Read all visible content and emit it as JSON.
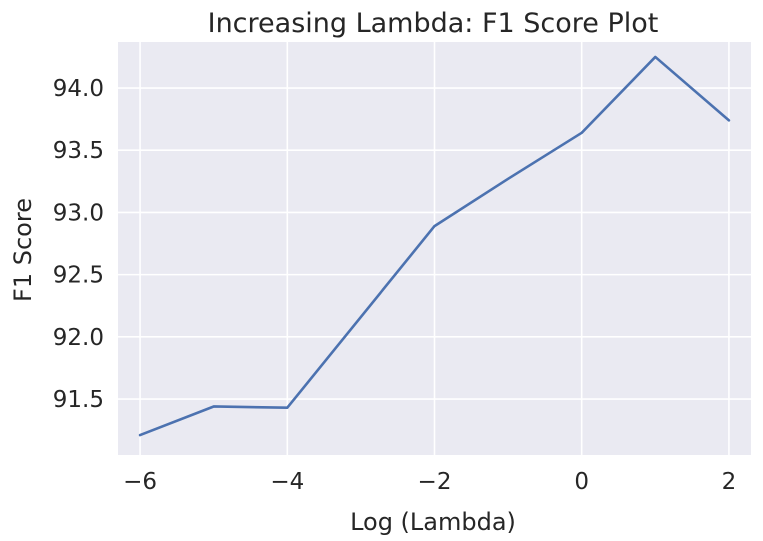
{
  "chart_data": {
    "type": "line",
    "title": "Increasing Lambda: F1 Score Plot",
    "xlabel": "Log (Lambda)",
    "ylabel": "F1 Score",
    "x": [
      -6,
      -5,
      -4,
      -2,
      -1,
      0,
      1,
      2
    ],
    "series": [
      {
        "values": [
          91.21,
          91.44,
          91.43,
          92.89,
          93.27,
          93.64,
          94.25,
          93.74
        ]
      }
    ],
    "xlim": [
      -6.3,
      2.3
    ],
    "ylim": [
      91.05,
      94.37
    ],
    "xticks": [
      -6,
      -4,
      -2,
      0,
      2
    ],
    "xtick_labels": [
      "−6",
      "−4",
      "−2",
      "0",
      "2"
    ],
    "yticks": [
      91.5,
      92.0,
      92.5,
      93.0,
      93.5,
      94.0
    ],
    "ytick_labels": [
      "91.5",
      "92.0",
      "92.5",
      "93.0",
      "93.5",
      "94.0"
    ],
    "grid": true,
    "legend": "none",
    "colors": {
      "background": "#eaeaf2",
      "grid": "#ffffff",
      "line": "#4c72b0"
    }
  }
}
